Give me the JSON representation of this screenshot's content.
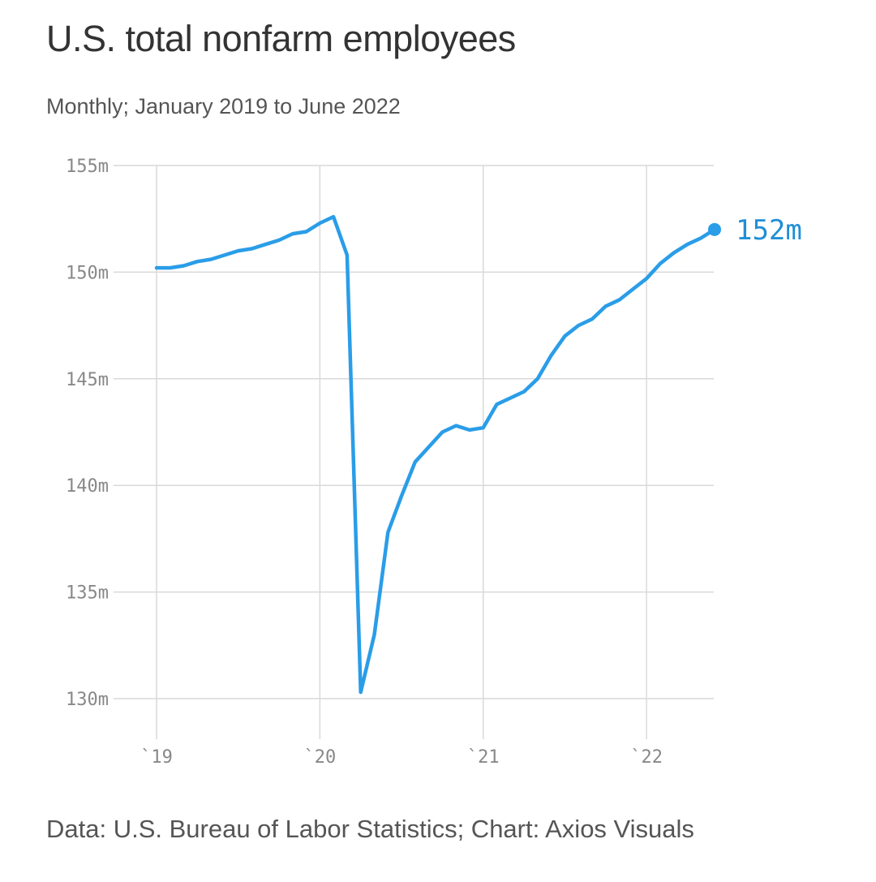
{
  "title": "U.S. total nonfarm employees",
  "subtitle": "Monthly; January 2019 to June 2022",
  "source": "Data: U.S. Bureau of Labor Statistics; Chart: Axios Visuals",
  "colors": {
    "line": "#2a9de8",
    "end_label": "#1f8fd6"
  },
  "chart_data": {
    "type": "line",
    "title": "U.S. total nonfarm employees",
    "subtitle": "Monthly; January 2019 to June 2022",
    "xlabel": "",
    "ylabel": "",
    "ylim": [
      130,
      155
    ],
    "yticks": [
      155,
      150,
      145,
      140,
      135,
      130
    ],
    "ytick_labels": [
      "155m",
      "150m",
      "145m",
      "140m",
      "135m",
      "130m"
    ],
    "xticks": [
      "`19",
      "`20",
      "`21",
      "`22"
    ],
    "grid": true,
    "end_label": "152m",
    "series": [
      {
        "x": [
          "2019-01",
          "2019-02",
          "2019-03",
          "2019-04",
          "2019-05",
          "2019-06",
          "2019-07",
          "2019-08",
          "2019-09",
          "2019-10",
          "2019-11",
          "2019-12",
          "2020-01",
          "2020-02",
          "2020-03",
          "2020-04",
          "2020-05",
          "2020-06",
          "2020-07",
          "2020-08",
          "2020-09",
          "2020-10",
          "2020-11",
          "2020-12",
          "2021-01",
          "2021-02",
          "2021-03",
          "2021-04",
          "2021-05",
          "2021-06",
          "2021-07",
          "2021-08",
          "2021-09",
          "2021-10",
          "2021-11",
          "2021-12",
          "2022-01",
          "2022-02",
          "2022-03",
          "2022-04",
          "2022-05",
          "2022-06"
        ],
        "values": [
          150.2,
          150.2,
          150.3,
          150.5,
          150.6,
          150.8,
          151.0,
          151.1,
          151.3,
          151.5,
          151.8,
          151.9,
          152.3,
          152.6,
          150.8,
          130.3,
          133.0,
          137.8,
          139.5,
          141.1,
          141.8,
          142.5,
          142.8,
          142.6,
          142.7,
          143.8,
          144.1,
          144.4,
          145.0,
          146.1,
          147.0,
          147.5,
          147.8,
          148.4,
          148.7,
          149.2,
          149.7,
          150.4,
          150.9,
          151.3,
          151.6,
          152.0
        ]
      }
    ]
  }
}
